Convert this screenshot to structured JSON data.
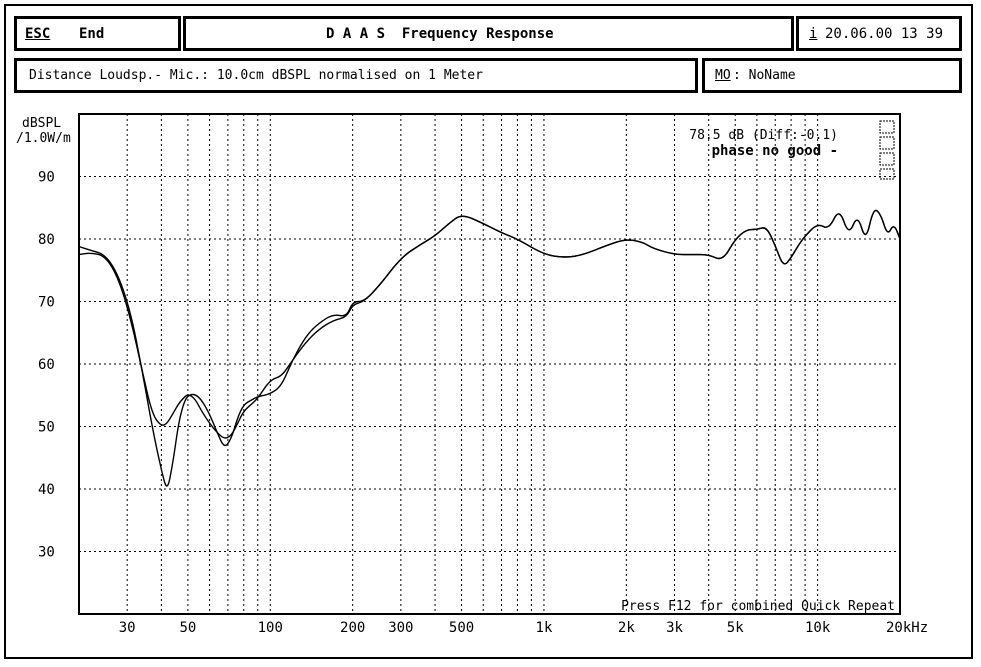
{
  "header": {
    "esc_key": "ESC",
    "end_label": "End",
    "title": "D A A S  Frequency Response",
    "info_key": "i",
    "datetime": "20.06.00 13 39"
  },
  "subheader": {
    "distance_text": "Distance Loudsp.- Mic.: 10.0cm dBSPL normalised on 1 Meter",
    "mo_key": "MO",
    "mo_value": ": NoName"
  },
  "plot_notes": {
    "level_readout": "78.5 dB (Diff:-0.1)",
    "phase_status": "phase no good -",
    "footer_hint": "Press F12 for combined Quick Repeat"
  },
  "chart_data": {
    "type": "line",
    "title": "D A A S  Frequency Response",
    "ylabel": "dBSPL\n/1.0W/m",
    "xlabel": "",
    "x_scale": "log",
    "xlim": [
      20,
      20000
    ],
    "ylim": [
      20,
      100
    ],
    "grid": true,
    "y_ticks": [
      30,
      40,
      50,
      60,
      70,
      80,
      90
    ],
    "x_tick_labels": [
      {
        "f": 30,
        "label": "30"
      },
      {
        "f": 50,
        "label": "50"
      },
      {
        "f": 100,
        "label": "100"
      },
      {
        "f": 200,
        "label": "200"
      },
      {
        "f": 300,
        "label": "300"
      },
      {
        "f": 500,
        "label": "500"
      },
      {
        "f": 1000,
        "label": "1k"
      },
      {
        "f": 2000,
        "label": "2k"
      },
      {
        "f": 3000,
        "label": "3k"
      },
      {
        "f": 5000,
        "label": "5k"
      },
      {
        "f": 10000,
        "label": "10k"
      },
      {
        "f": 20000,
        "label": "20kHz"
      }
    ],
    "series": [
      {
        "x": [
          20,
          22,
          25,
          28,
          31,
          34,
          37,
          40,
          42,
          44,
          46,
          48,
          50,
          53,
          56,
          60,
          64,
          68,
          72,
          76,
          80,
          85,
          90,
          100,
          110,
          120,
          135,
          150,
          170,
          190,
          200,
          220,
          250,
          300,
          350,
          400,
          450,
          500,
          600,
          700,
          800,
          1000,
          1200,
          1400,
          1700,
          2000,
          2300,
          2500,
          3000,
          3500,
          4000,
          4500,
          5000,
          5500,
          6000,
          6500,
          7000,
          7500,
          8000,
          8500,
          9000,
          10000,
          11000,
          12000,
          13000,
          14000,
          15000,
          16000,
          17000,
          18000,
          19000,
          20000
        ],
        "y": [
          78.8,
          78.2,
          77.5,
          74,
          68,
          59,
          50,
          43,
          39.5,
          44,
          50,
          53.5,
          55,
          55.2,
          54.3,
          52,
          49,
          46.5,
          48,
          51.5,
          53.5,
          54.2,
          54.8,
          55.2,
          56.5,
          60.5,
          64.5,
          66.5,
          68,
          67.5,
          70,
          70,
          72.5,
          77,
          79,
          80.5,
          82.5,
          84,
          82.5,
          81,
          80,
          77.5,
          77,
          77.5,
          79,
          80,
          79.5,
          78.5,
          77.5,
          77.5,
          77.5,
          76.5,
          80,
          81.5,
          81.5,
          82,
          79,
          75.5,
          77,
          79,
          80.5,
          82.5,
          81.5,
          85,
          80.5,
          84,
          79.5,
          85,
          84,
          80.5,
          82.5,
          80
        ]
      },
      {
        "x": [
          20,
          22,
          25,
          28,
          31,
          34,
          37,
          40,
          42,
          44,
          46,
          48,
          50,
          53,
          56,
          60,
          64,
          68,
          72,
          76,
          80,
          85,
          90,
          100,
          110,
          120,
          135,
          150,
          170,
          190,
          200,
          220,
          250,
          300,
          350,
          400,
          450,
          500,
          600,
          700,
          800,
          1000,
          1200,
          1400,
          1700,
          2000,
          2300,
          2500,
          3000,
          3500,
          4000,
          4500,
          5000,
          5500,
          6000,
          6500,
          7000,
          7500,
          8000,
          8500,
          9000,
          10000,
          11000,
          12000,
          13000,
          14000,
          15000,
          16000,
          17000,
          18000,
          19000,
          20000
        ],
        "y": [
          77.5,
          77.8,
          77.3,
          73.5,
          67,
          59,
          52,
          50,
          50.5,
          52,
          53.5,
          54.5,
          55.2,
          54.5,
          52.5,
          50.5,
          49,
          48,
          48.5,
          50.5,
          52.5,
          53.5,
          54.5,
          57.5,
          58,
          60.5,
          63.5,
          65.5,
          67,
          67.5,
          69.5,
          70,
          72.5,
          77,
          79,
          80.5,
          82.5,
          84,
          82.5,
          81,
          80,
          77.5,
          77,
          77.5,
          79,
          80,
          79.5,
          78.5,
          77.5,
          77.5,
          77.5,
          76.5,
          80,
          81.5,
          81.5,
          82,
          79,
          75.5,
          77,
          79,
          80.5,
          82.5,
          81.5,
          85,
          80.5,
          84,
          79.5,
          85,
          84,
          80.5,
          82.5,
          80
        ]
      }
    ]
  }
}
